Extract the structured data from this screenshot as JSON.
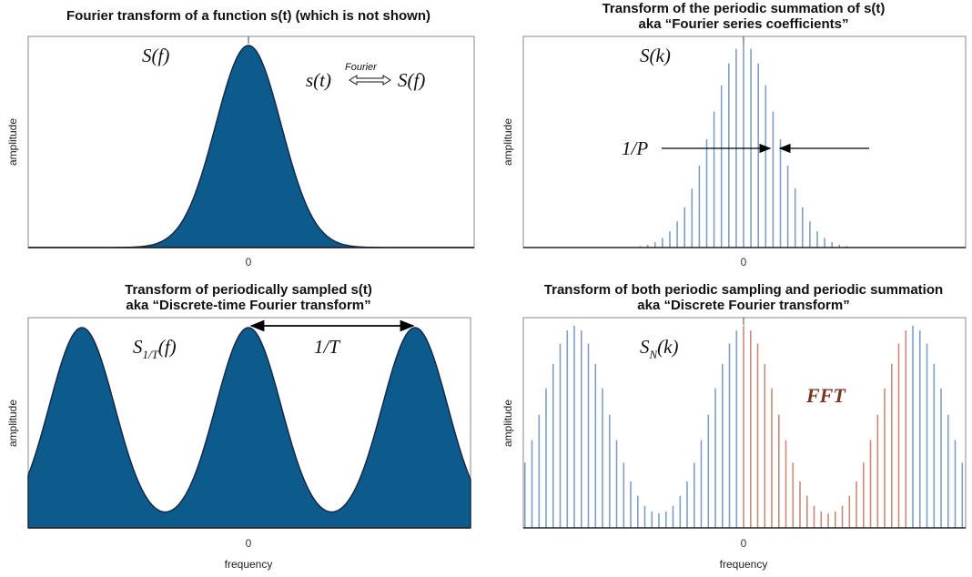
{
  "panels": [
    {
      "title": [
        "Fourier transform of a function s(t) (which is not shown)"
      ],
      "label": "S(f)",
      "pair_left": "s(t)",
      "pair_arrow_label": "Fourier",
      "pair_right": "S(f)",
      "ylabel": "amplitude",
      "tick": "0"
    },
    {
      "title": [
        "Transform of the periodic summation of s(t)",
        "aka “Fourier series coefficients”"
      ],
      "label": "S(k)",
      "spacing_label": "1/P",
      "ylabel": "amplitude",
      "tick": "0"
    },
    {
      "title": [
        "Transform of periodically sampled s(t)",
        "aka “Discrete-time Fourier transform”"
      ],
      "label_main": "S",
      "label_sub": "1/T",
      "label_tail": "(f)",
      "period_label": "1/T",
      "ylabel": "amplitude",
      "tick": "0",
      "xlabel": "frequency"
    },
    {
      "title": [
        "Transform of both periodic sampling and periodic summation",
        "aka “Discrete Fourier transform”"
      ],
      "label_main": "S",
      "label_sub": "N",
      "label_tail": "(k)",
      "fft_label": "FFT",
      "ylabel": "amplitude",
      "tick": "0",
      "xlabel": "frequency"
    }
  ],
  "colors": {
    "fill": "#0d5a8c",
    "outline": "#142a48",
    "stem_blue": "#7f9fc6",
    "stem_red": "#c88a78",
    "fft_text": "#7a3522",
    "frame": "#888888"
  }
}
